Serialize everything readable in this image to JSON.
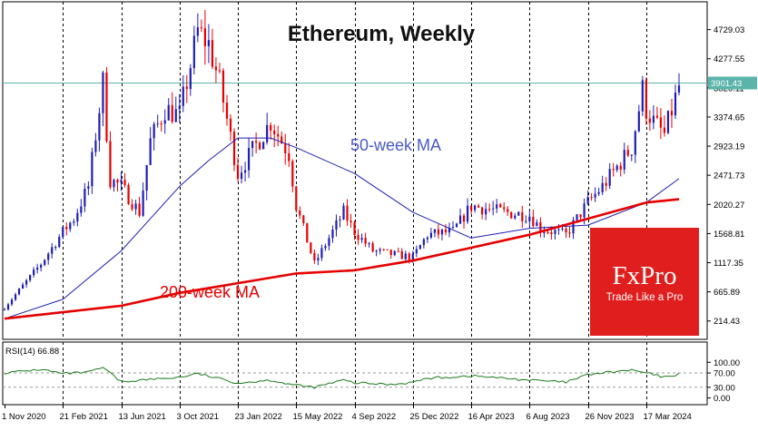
{
  "chart_data": [
    {
      "type": "candlestick",
      "title": "Ethereum, Weekly",
      "ylim": [
        0,
        5000
      ],
      "y_ticks": [
        "4729.03",
        "4277.55",
        "3826.11",
        "3374.65",
        "2923.19",
        "2471.73",
        "2020.27",
        "1568.81",
        "1117.35",
        "665.89",
        "214.43"
      ],
      "x_ticks": [
        "1 Nov 2020",
        "21 Feb 2021",
        "13 Jun 2021",
        "3 Oct 2021",
        "23 Jan 2022",
        "15 May 2022",
        "4 Sep 2022",
        "25 Dec 2022",
        "16 Apr 2023",
        "6 Aug 2023",
        "26 Nov 2023",
        "17 Mar 2024"
      ],
      "current_price": "3901.43",
      "current_price_value": 3901.43,
      "close_path": [
        [
          "1 Nov 2020",
          420
        ],
        [
          "10 Jan 2021",
          1100
        ],
        [
          "21 Feb 2021",
          1600
        ],
        [
          "14 Mar 2021",
          1800
        ],
        [
          "11 Apr 2021",
          2300
        ],
        [
          "9 May 2021",
          3900
        ],
        [
          "23 May 2021",
          2400
        ],
        [
          "13 Jun 2021",
          2300
        ],
        [
          "18 Jul 2021",
          1900
        ],
        [
          "8 Aug 2021",
          3000
        ],
        [
          "5 Sep 2021",
          3500
        ],
        [
          "3 Oct 2021",
          3400
        ],
        [
          "7 Nov 2021",
          4700
        ],
        [
          "28 Nov 2021",
          4500
        ],
        [
          "19 Dec 2021",
          3900
        ],
        [
          "23 Jan 2022",
          2500
        ],
        [
          "27 Mar 2022",
          3300
        ],
        [
          "1 May 2022",
          2800
        ],
        [
          "15 May 2022",
          2000
        ],
        [
          "19 Jun 2022",
          1100
        ],
        [
          "14 Aug 2022",
          1900
        ],
        [
          "4 Sep 2022",
          1600
        ],
        [
          "9 Oct 2022",
          1300
        ],
        [
          "13 Nov 2022",
          1250
        ],
        [
          "25 Dec 2022",
          1200
        ],
        [
          "22 Jan 2023",
          1550
        ],
        [
          "12 Mar 2023",
          1600
        ],
        [
          "16 Apr 2023",
          2000
        ],
        [
          "18 Jun 2023",
          1900
        ],
        [
          "6 Aug 2023",
          1850
        ],
        [
          "27 Aug 2023",
          1650
        ],
        [
          "15 Oct 2023",
          1550
        ],
        [
          "26 Nov 2023",
          2050
        ],
        [
          "24 Dec 2023",
          2300
        ],
        [
          "18 Feb 2024",
          2900
        ],
        [
          "10 Mar 2024",
          3800
        ],
        [
          "17 Mar 2024",
          3500
        ],
        [
          "31 Mar 2024",
          3300
        ],
        [
          "21 Apr 2024",
          3100
        ],
        [
          "19 May 2024",
          3850
        ]
      ],
      "series": [
        {
          "name": "50-week MA",
          "color": "#1e1eb4",
          "points": [
            [
              "1 Nov 2020",
              250
            ],
            [
              "21 Feb 2021",
              550
            ],
            [
              "13 Jun 2021",
              1300
            ],
            [
              "3 Oct 2021",
              2300
            ],
            [
              "28 Nov 2021",
              2700
            ],
            [
              "23 Jan 2022",
              3050
            ],
            [
              "27 Mar 2022",
              3050
            ],
            [
              "15 May 2022",
              2900
            ],
            [
              "4 Sep 2022",
              2500
            ],
            [
              "25 Dec 2022",
              1900
            ],
            [
              "16 Apr 2023",
              1500
            ],
            [
              "6 Aug 2023",
              1650
            ],
            [
              "26 Nov 2023",
              1700
            ],
            [
              "17 Mar 2024",
              2050
            ],
            [
              "19 May 2024",
              2420
            ]
          ]
        },
        {
          "name": "200-week MA",
          "color": "#e60000",
          "points": [
            [
              "1 Nov 2020",
              250
            ],
            [
              "13 Jun 2021",
              450
            ],
            [
              "3 Oct 2021",
              650
            ],
            [
              "23 Jan 2022",
              800
            ],
            [
              "15 May 2022",
              950
            ],
            [
              "4 Sep 2022",
              1000
            ],
            [
              "25 Dec 2022",
              1150
            ],
            [
              "16 Apr 2023",
              1350
            ],
            [
              "6 Aug 2023",
              1550
            ],
            [
              "26 Nov 2023",
              1800
            ],
            [
              "17 Mar 2024",
              2050
            ],
            [
              "19 May 2024",
              2100
            ]
          ]
        }
      ]
    },
    {
      "type": "line",
      "title": "RSI(14) 66.88",
      "ylim": [
        0,
        100
      ],
      "y_ticks": [
        "100.00",
        "70.00",
        "30.00",
        "0.00"
      ],
      "series": [
        {
          "name": "RSI(14)",
          "color": "#1a7a1a",
          "points": [
            [
              "1 Nov 2020",
              70
            ],
            [
              "10 Jan 2021",
              80
            ],
            [
              "21 Feb 2021",
              68
            ],
            [
              "11 Apr 2021",
              72
            ],
            [
              "9 May 2021",
              85
            ],
            [
              "13 Jun 2021",
              45
            ],
            [
              "18 Jul 2021",
              50
            ],
            [
              "3 Oct 2021",
              58
            ],
            [
              "7 Nov 2021",
              68
            ],
            [
              "23 Jan 2022",
              42
            ],
            [
              "27 Mar 2022",
              50
            ],
            [
              "15 May 2022",
              35
            ],
            [
              "19 Jun 2022",
              30
            ],
            [
              "14 Aug 2022",
              50
            ],
            [
              "4 Sep 2022",
              42
            ],
            [
              "13 Nov 2022",
              38
            ],
            [
              "25 Dec 2022",
              44
            ],
            [
              "22 Jan 2023",
              55
            ],
            [
              "16 Apr 2023",
              62
            ],
            [
              "6 Aug 2023",
              50
            ],
            [
              "15 Oct 2023",
              44
            ],
            [
              "26 Nov 2023",
              65
            ],
            [
              "24 Dec 2023",
              70
            ],
            [
              "18 Feb 2024",
              78
            ],
            [
              "17 Mar 2024",
              70
            ],
            [
              "21 Apr 2024",
              58
            ],
            [
              "19 May 2024",
              67
            ]
          ]
        }
      ]
    }
  ],
  "annotations": {
    "ma50_label": "50-week MA",
    "ma200_label": "200-week MA"
  },
  "logo": {
    "brand": "FxPro",
    "tagline": "Trade Like a Pro",
    "color": "#e01e1e"
  },
  "colors": {
    "bull": "#1e1eb4",
    "bear": "#e60000",
    "price_line": "#5ab4aa",
    "grid": "#000000"
  }
}
